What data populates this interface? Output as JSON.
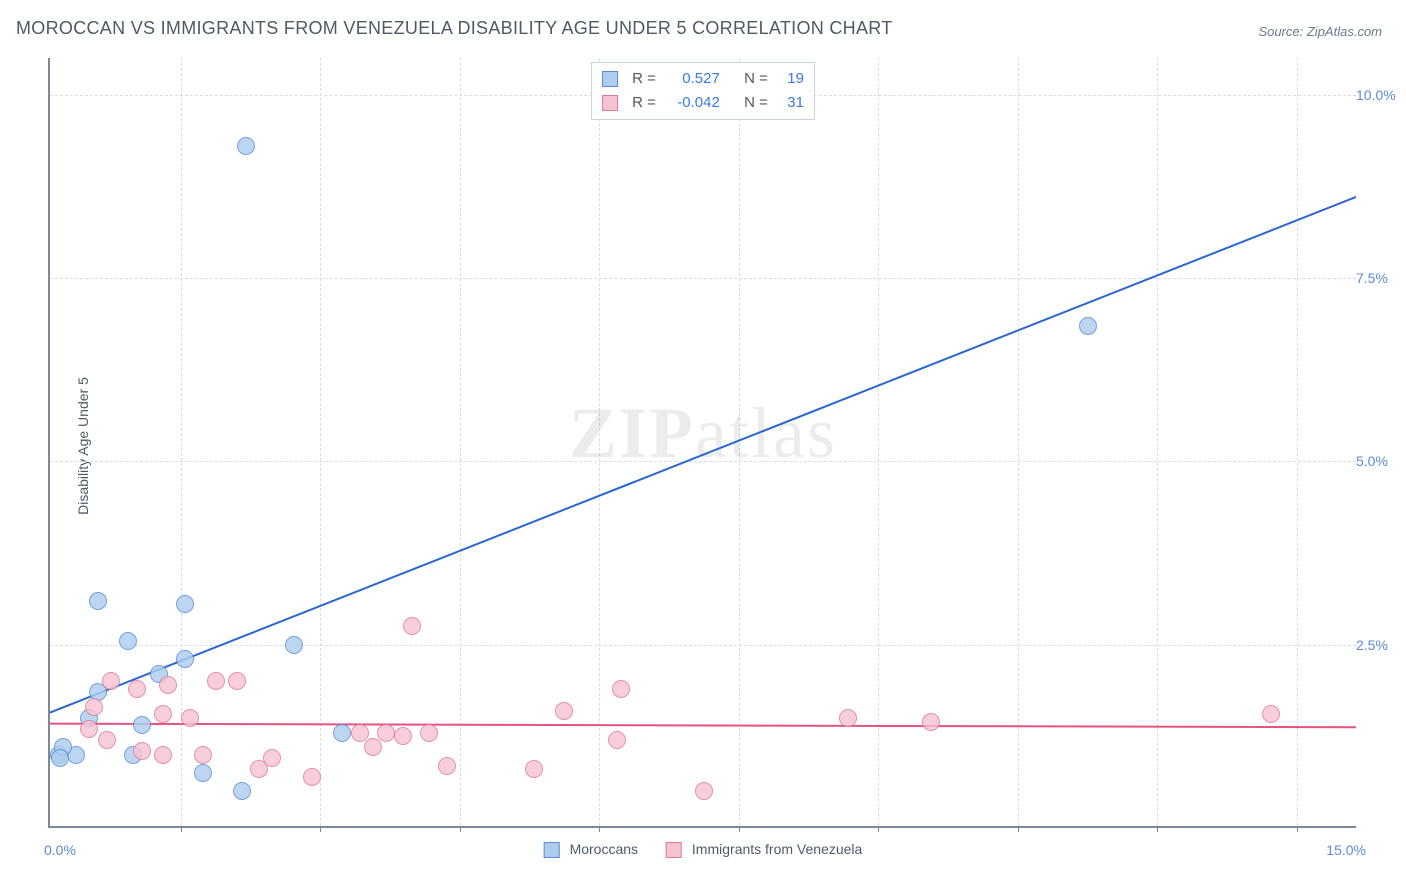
{
  "title": "MOROCCAN VS IMMIGRANTS FROM VENEZUELA DISABILITY AGE UNDER 5 CORRELATION CHART",
  "source": "Source: ZipAtlas.com",
  "y_axis_label": "Disability Age Under 5",
  "watermark_bold": "ZIP",
  "watermark_rest": "atlas",
  "chart": {
    "type": "scatter",
    "xlim": [
      0,
      15
    ],
    "ylim": [
      0,
      10.5
    ],
    "x_ticks": [
      0,
      5,
      10,
      15
    ],
    "y_ticks": [
      2.5,
      5.0,
      7.5,
      10.0
    ],
    "y_tick_labels": [
      "2.5%",
      "5.0%",
      "7.5%",
      "10.0%"
    ],
    "x_tick_left_label": "0.0%",
    "x_tick_right_label": "15.0%",
    "grid_color": "#d8dde3",
    "axis_color": "#7a8a99",
    "background_color": "#ffffff",
    "vgrid_positions": [
      1.5,
      3.1,
      4.7,
      6.3,
      7.9,
      9.5,
      11.1,
      12.7,
      14.3
    ]
  },
  "series": [
    {
      "name": "Moroccans",
      "fill": "#aecdee",
      "stroke": "#5a8cd6",
      "marker_radius": 9,
      "trend_color": "#2a66d3",
      "trend_width": 2,
      "trend": {
        "x1": 0,
        "y1": 1.55,
        "x2": 15,
        "y2": 8.6
      },
      "r_value": "0.527",
      "n_value": "19",
      "points": [
        {
          "x": 2.25,
          "y": 9.3
        },
        {
          "x": 11.9,
          "y": 6.85
        },
        {
          "x": 0.55,
          "y": 3.1
        },
        {
          "x": 1.55,
          "y": 3.05
        },
        {
          "x": 0.9,
          "y": 2.55
        },
        {
          "x": 1.55,
          "y": 2.3
        },
        {
          "x": 2.8,
          "y": 2.5
        },
        {
          "x": 1.25,
          "y": 2.1
        },
        {
          "x": 0.55,
          "y": 1.85
        },
        {
          "x": 0.3,
          "y": 1.0
        },
        {
          "x": 0.45,
          "y": 1.5
        },
        {
          "x": 0.1,
          "y": 1.0
        },
        {
          "x": 0.15,
          "y": 1.1
        },
        {
          "x": 0.12,
          "y": 0.95
        },
        {
          "x": 3.35,
          "y": 1.3
        },
        {
          "x": 1.05,
          "y": 1.4
        },
        {
          "x": 0.95,
          "y": 1.0
        },
        {
          "x": 1.75,
          "y": 0.75
        },
        {
          "x": 2.2,
          "y": 0.5
        }
      ]
    },
    {
      "name": "Immigrants from Venezuela",
      "fill": "#f6c4d1",
      "stroke": "#e07a9a",
      "marker_radius": 9,
      "trend_color": "#e5537e",
      "trend_width": 2,
      "trend": {
        "x1": 0,
        "y1": 1.4,
        "x2": 15,
        "y2": 1.35
      },
      "r_value": "-0.042",
      "n_value": "31",
      "points": [
        {
          "x": 4.15,
          "y": 2.75
        },
        {
          "x": 0.7,
          "y": 2.0
        },
        {
          "x": 1.0,
          "y": 1.9
        },
        {
          "x": 1.35,
          "y": 1.95
        },
        {
          "x": 1.9,
          "y": 2.0
        },
        {
          "x": 2.15,
          "y": 2.0
        },
        {
          "x": 6.55,
          "y": 1.9
        },
        {
          "x": 0.5,
          "y": 1.65
        },
        {
          "x": 1.3,
          "y": 1.55
        },
        {
          "x": 1.6,
          "y": 1.5
        },
        {
          "x": 5.9,
          "y": 1.6
        },
        {
          "x": 14.0,
          "y": 1.55
        },
        {
          "x": 9.15,
          "y": 1.5
        },
        {
          "x": 10.1,
          "y": 1.45
        },
        {
          "x": 3.55,
          "y": 1.3
        },
        {
          "x": 3.85,
          "y": 1.3
        },
        {
          "x": 4.05,
          "y": 1.25
        },
        {
          "x": 4.35,
          "y": 1.3
        },
        {
          "x": 6.5,
          "y": 1.2
        },
        {
          "x": 3.7,
          "y": 1.1
        },
        {
          "x": 2.55,
          "y": 0.95
        },
        {
          "x": 1.05,
          "y": 1.05
        },
        {
          "x": 1.3,
          "y": 1.0
        },
        {
          "x": 1.75,
          "y": 1.0
        },
        {
          "x": 2.4,
          "y": 0.8
        },
        {
          "x": 3.0,
          "y": 0.7
        },
        {
          "x": 4.55,
          "y": 0.85
        },
        {
          "x": 5.55,
          "y": 0.8
        },
        {
          "x": 7.5,
          "y": 0.5
        },
        {
          "x": 0.65,
          "y": 1.2
        },
        {
          "x": 0.45,
          "y": 1.35
        }
      ]
    }
  ],
  "legend_labels": {
    "r_prefix": "R =",
    "n_prefix": "N ="
  }
}
